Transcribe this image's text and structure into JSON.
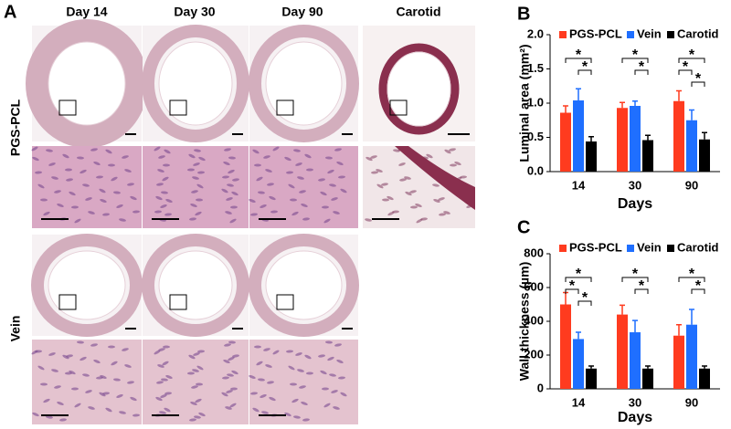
{
  "panels": {
    "a": "A",
    "b": "B",
    "c": "C"
  },
  "histology": {
    "columns": [
      "Day 14",
      "Day 30",
      "Day 90",
      "Carotid"
    ],
    "rows": [
      "PGS-PCL",
      "Vein"
    ]
  },
  "chart_data": [
    {
      "type": "bar",
      "ylabel": "Luminal area (mm²)",
      "xlabel": "Days",
      "categories": [
        "14",
        "30",
        "90"
      ],
      "series": [
        {
          "name": "PGS-PCL",
          "color": "#ff3b1f",
          "values": [
            0.86,
            0.93,
            1.03
          ],
          "errors": [
            0.1,
            0.08,
            0.15
          ]
        },
        {
          "name": "Vein",
          "color": "#1f6fff",
          "values": [
            1.04,
            0.96,
            0.75
          ],
          "errors": [
            0.17,
            0.07,
            0.15
          ]
        },
        {
          "name": "Carotid",
          "color": "#000000",
          "values": [
            0.44,
            0.46,
            0.47
          ],
          "errors": [
            0.07,
            0.07,
            0.1
          ]
        }
      ],
      "ylim": [
        0,
        2
      ],
      "yticks": [
        {
          "value": 0,
          "label": "0.0"
        },
        {
          "value": 0.5,
          "label": "0.5"
        },
        {
          "value": 1,
          "label": "1.0"
        },
        {
          "value": 1.5,
          "label": "1.5"
        },
        {
          "value": 2,
          "label": "2.0"
        }
      ],
      "brackets": [
        {
          "category": 0,
          "series": [
            0,
            2
          ],
          "label": "*"
        },
        {
          "category": 0,
          "series": [
            1,
            2
          ],
          "label": "*"
        },
        {
          "category": 1,
          "series": [
            0,
            2
          ],
          "label": "*"
        },
        {
          "category": 1,
          "series": [
            1,
            2
          ],
          "label": "*"
        },
        {
          "category": 2,
          "series": [
            0,
            2
          ],
          "label": "*"
        },
        {
          "category": 2,
          "series": [
            0,
            1
          ],
          "label": "*"
        },
        {
          "category": 2,
          "series": [
            1,
            2
          ],
          "label": "*"
        }
      ]
    },
    {
      "type": "bar",
      "ylabel": "Wall thickness (µm)",
      "xlabel": "Days",
      "categories": [
        "14",
        "30",
        "90"
      ],
      "series": [
        {
          "name": "PGS-PCL",
          "color": "#ff3b1f",
          "values": [
            500,
            440,
            315
          ],
          "errors": [
            70,
            55,
            65
          ]
        },
        {
          "name": "Vein",
          "color": "#1f6fff",
          "values": [
            295,
            335,
            380
          ],
          "errors": [
            40,
            70,
            90
          ]
        },
        {
          "name": "Carotid",
          "color": "#000000",
          "values": [
            120,
            120,
            120
          ],
          "errors": [
            15,
            15,
            15
          ]
        }
      ],
      "ylim": [
        0,
        800
      ],
      "yticks": [
        0,
        200,
        400,
        600,
        800
      ],
      "brackets": [
        {
          "category": 0,
          "series": [
            0,
            2
          ],
          "label": "*"
        },
        {
          "category": 0,
          "series": [
            0,
            1
          ],
          "label": "*"
        },
        {
          "category": 0,
          "series": [
            1,
            2
          ],
          "label": "*"
        },
        {
          "category": 1,
          "series": [
            0,
            2
          ],
          "label": "*"
        },
        {
          "category": 1,
          "series": [
            1,
            2
          ],
          "label": "*"
        },
        {
          "category": 2,
          "series": [
            0,
            2
          ],
          "label": "*"
        },
        {
          "category": 2,
          "series": [
            1,
            2
          ],
          "label": "*"
        }
      ]
    }
  ]
}
